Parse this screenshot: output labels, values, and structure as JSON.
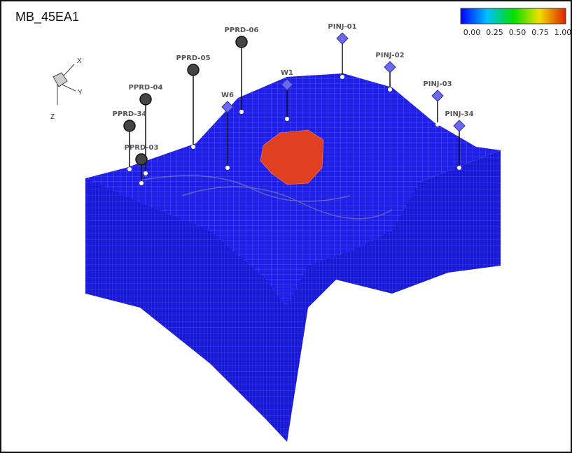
{
  "title": "MB_45EA1",
  "colorbar": {
    "labels": [
      "0.00",
      "0.25",
      "0.50",
      "0.75",
      "1.00"
    ]
  },
  "axes": {
    "x": "X",
    "y": "Y",
    "z": "Z"
  },
  "wells": [
    {
      "label": "PPRD-06"
    },
    {
      "label": "PINJ-01"
    },
    {
      "label": "PPRD-05"
    },
    {
      "label": "PINJ-02"
    },
    {
      "label": "PPRD-04"
    },
    {
      "label": "W1"
    },
    {
      "label": "PINJ-03"
    },
    {
      "label": "W6"
    },
    {
      "label": "PPRD-34"
    },
    {
      "label": "PINJ-34"
    },
    {
      "label": "PPRD-03"
    }
  ]
}
